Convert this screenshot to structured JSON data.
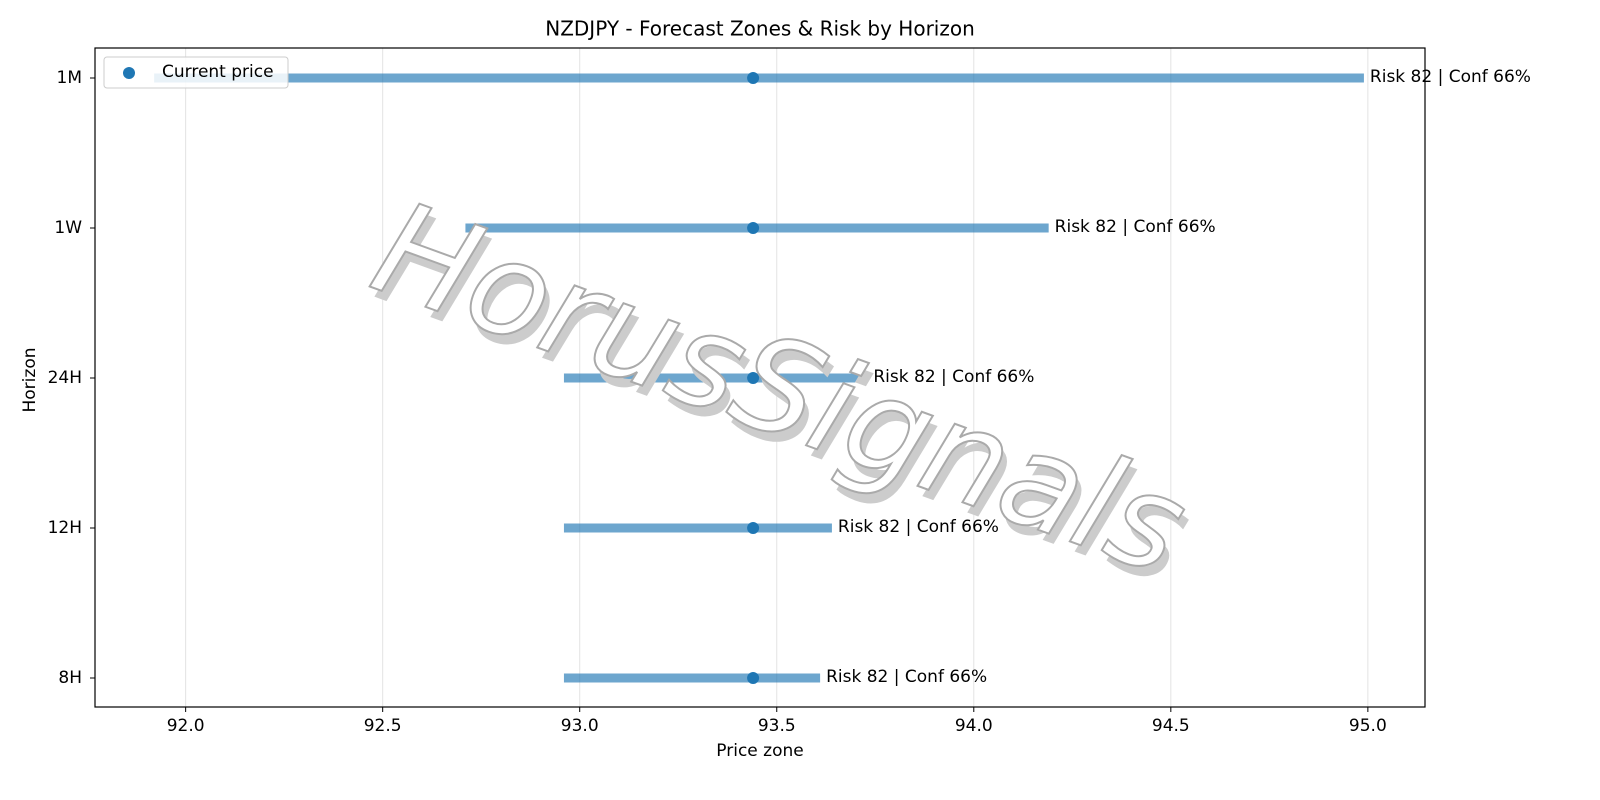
{
  "chart_data": {
    "type": "range",
    "title": "NZDJPY - Forecast Zones & Risk by Horizon",
    "x_label": "Price zone",
    "y_label": "Horizon",
    "categories": [
      "1M",
      "1W",
      "24H",
      "12H",
      "8H"
    ],
    "lows": [
      91.92,
      92.71,
      92.96,
      92.96,
      92.96
    ],
    "highs": [
      94.99,
      94.19,
      93.73,
      93.64,
      93.61
    ],
    "range_color": "#1f77b4",
    "current": {
      "name": "Current price",
      "color": "#1f77b4",
      "values": [
        93.44,
        93.44,
        93.44,
        93.44,
        93.44
      ]
    },
    "annotations": [
      "Risk 82 | Conf 66%",
      "Risk 82 | Conf 66%",
      "Risk 82 | Conf 66%",
      "Risk 82 | Conf 66%",
      "Risk 82 | Conf 66%"
    ],
    "xlim": [
      91.77,
      95.145
    ],
    "xticks": [
      {
        "value": 92.0,
        "label": "92.0"
      },
      92.5,
      {
        "value": 93.0,
        "label": "93.0"
      },
      93.5,
      {
        "value": 94.0,
        "label": "94.0"
      },
      94.5,
      {
        "value": 95.0,
        "label": "95.0"
      }
    ],
    "grid": true,
    "legend": "upper-left",
    "watermark": "HorusSignals"
  }
}
